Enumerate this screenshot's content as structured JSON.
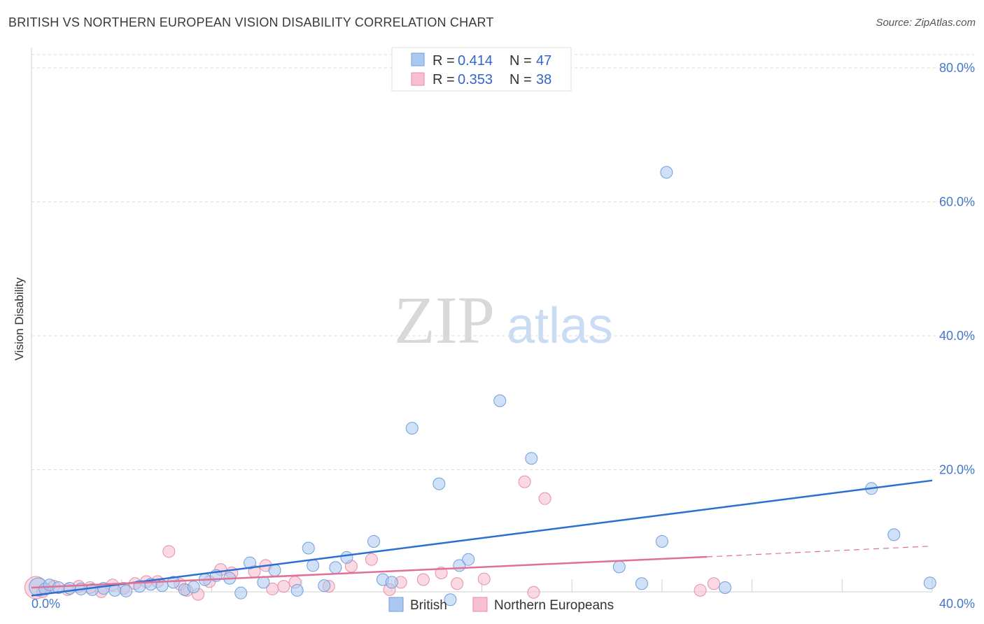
{
  "title": "BRITISH VS NORTHERN EUROPEAN VISION DISABILITY CORRELATION CHART",
  "source": "Source: ZipAtlas.com",
  "watermark": {
    "zip": "ZIP",
    "atlas": "atlas"
  },
  "colors": {
    "british_fill": "#aac8f0",
    "british_stroke": "#6f9fdc",
    "british_line": "#2a6fd1",
    "northern_fill": "#f7bfd0",
    "northern_stroke": "#e58faa",
    "northern_line": "#e07098",
    "tick": "#4477cc",
    "grid": "#dddddd"
  },
  "legend": {
    "british": {
      "r_label": "R =",
      "r_value": "0.414",
      "n_label": "N =",
      "n_value": "47"
    },
    "northern": {
      "r_label": "R =",
      "r_value": "0.353",
      "n_label": "N =",
      "n_value": "38"
    }
  },
  "chart_data": {
    "type": "scatter",
    "title": "BRITISH VS NORTHERN EUROPEAN VISION DISABILITY CORRELATION CHART",
    "xlabel": "",
    "ylabel": "Vision Disability",
    "xlim": [
      0,
      40
    ],
    "ylim": [
      0,
      80
    ],
    "x_tick_labels": [
      "0.0%",
      "40.0%"
    ],
    "y_ticks": [
      20,
      40,
      60,
      80
    ],
    "y_tick_labels": [
      "20.0%",
      "40.0%",
      "60.0%",
      "80.0%"
    ],
    "grid": true,
    "series": [
      {
        "name": "British",
        "points": [
          [
            0.3,
            2.5
          ],
          [
            0.6,
            2.2
          ],
          [
            0.8,
            2.8
          ],
          [
            1.2,
            2.4
          ],
          [
            1.7,
            2.3
          ],
          [
            2.2,
            2.2
          ],
          [
            2.7,
            2.1
          ],
          [
            3.2,
            2.3
          ],
          [
            3.7,
            2.0
          ],
          [
            4.2,
            1.9
          ],
          [
            4.8,
            2.6
          ],
          [
            5.3,
            2.9
          ],
          [
            5.8,
            2.7
          ],
          [
            6.3,
            3.2
          ],
          [
            6.8,
            2.1
          ],
          [
            7.2,
            2.5
          ],
          [
            7.7,
            3.6
          ],
          [
            8.2,
            4.2
          ],
          [
            8.8,
            3.8
          ],
          [
            9.3,
            1.6
          ],
          [
            9.7,
            6.1
          ],
          [
            10.3,
            3.2
          ],
          [
            10.8,
            5.0
          ],
          [
            11.8,
            2.0
          ],
          [
            12.3,
            8.3
          ],
          [
            12.5,
            5.7
          ],
          [
            13.0,
            2.7
          ],
          [
            13.5,
            5.4
          ],
          [
            14.0,
            6.9
          ],
          [
            15.2,
            9.3
          ],
          [
            15.6,
            3.6
          ],
          [
            16.0,
            3.2
          ],
          [
            16.9,
            26.2
          ],
          [
            18.1,
            17.9
          ],
          [
            18.6,
            0.6
          ],
          [
            19.0,
            5.7
          ],
          [
            19.4,
            6.6
          ],
          [
            20.8,
            30.3
          ],
          [
            22.2,
            21.7
          ],
          [
            26.1,
            5.5
          ],
          [
            27.1,
            3.0
          ],
          [
            28.0,
            9.3
          ],
          [
            28.2,
            64.4
          ],
          [
            30.8,
            2.4
          ],
          [
            37.3,
            17.2
          ],
          [
            38.3,
            10.3
          ],
          [
            39.9,
            3.1
          ]
        ],
        "trend": [
          [
            0,
            1.2
          ],
          [
            40,
            18.4
          ]
        ]
      },
      {
        "name": "Northern Europeans",
        "points": [
          [
            0.2,
            2.4
          ],
          [
            0.5,
            1.8
          ],
          [
            1.0,
            2.6
          ],
          [
            1.6,
            2.1
          ],
          [
            2.1,
            2.6
          ],
          [
            2.6,
            2.4
          ],
          [
            3.1,
            1.8
          ],
          [
            3.6,
            2.8
          ],
          [
            4.1,
            2.3
          ],
          [
            4.6,
            3.0
          ],
          [
            5.1,
            3.3
          ],
          [
            5.6,
            3.3
          ],
          [
            6.1,
            7.8
          ],
          [
            6.6,
            2.9
          ],
          [
            6.9,
            2.0
          ],
          [
            7.4,
            1.4
          ],
          [
            7.9,
            3.3
          ],
          [
            8.4,
            5.1
          ],
          [
            8.9,
            4.6
          ],
          [
            9.9,
            4.8
          ],
          [
            10.4,
            5.7
          ],
          [
            10.7,
            2.2
          ],
          [
            11.2,
            2.6
          ],
          [
            11.7,
            3.2
          ],
          [
            13.2,
            2.6
          ],
          [
            14.2,
            5.6
          ],
          [
            15.1,
            6.6
          ],
          [
            15.9,
            2.1
          ],
          [
            16.4,
            3.2
          ],
          [
            17.4,
            3.6
          ],
          [
            18.9,
            3.0
          ],
          [
            20.1,
            3.7
          ],
          [
            21.9,
            18.2
          ],
          [
            22.8,
            15.7
          ],
          [
            22.3,
            1.7
          ],
          [
            29.7,
            2.0
          ],
          [
            30.3,
            3.0
          ],
          [
            18.2,
            4.6
          ]
        ],
        "trend": [
          [
            0,
            2.4
          ],
          [
            30,
            7.0
          ]
        ],
        "trend_dashed": [
          [
            30,
            7.0
          ],
          [
            40,
            8.6
          ]
        ]
      }
    ],
    "legend_labels": [
      "British",
      "Northern Europeans"
    ]
  }
}
